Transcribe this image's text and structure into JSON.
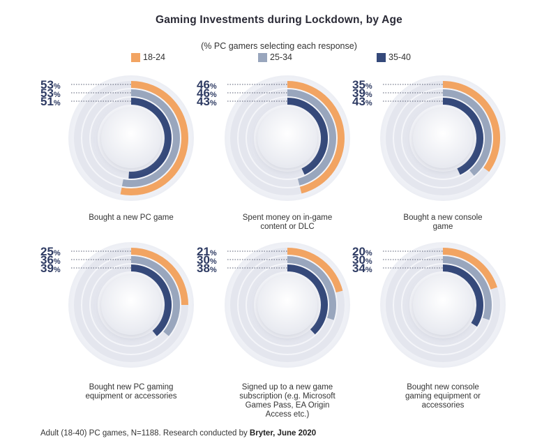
{
  "title": "Gaming Investments during Lockdown, by Age",
  "subtitle": "(% PC gamers selecting each response)",
  "footnote": {
    "text": "Adult (18-40) PC games, N=1188. Research conducted by ",
    "credit": "Bryter, June 2020"
  },
  "colors": {
    "track": "#e4e6ee",
    "center": "#f2f3f7",
    "label": "#2e3b63",
    "dotted": "#555b70"
  },
  "chart_data": {
    "type": "radial bar",
    "value_unit": "%",
    "series": [
      {
        "name": "18-24",
        "color": "#f2a462"
      },
      {
        "name": "25-34",
        "color": "#99a6bd"
      },
      {
        "name": "35-40",
        "color": "#35497a"
      }
    ],
    "panels": [
      {
        "caption": [
          "Bought a new PC game"
        ],
        "values": [
          53,
          53,
          51
        ]
      },
      {
        "caption": [
          "Spent money on in-game",
          "content or DLC"
        ],
        "values": [
          46,
          46,
          43
        ]
      },
      {
        "caption": [
          "Bought a new console",
          "game"
        ],
        "values": [
          35,
          39,
          43
        ]
      },
      {
        "caption": [
          "Bought new PC gaming",
          "equipment or accessories"
        ],
        "values": [
          25,
          36,
          39
        ]
      },
      {
        "caption": [
          "Signed up to a new game",
          "subscription (e.g. Microsoft",
          "Games Pass, EA Origin",
          "Access etc.)"
        ],
        "values": [
          21,
          30,
          38
        ]
      },
      {
        "caption": [
          "Bought new console",
          "gaming equipment or",
          "accessories"
        ],
        "values": [
          20,
          30,
          34
        ]
      }
    ]
  }
}
